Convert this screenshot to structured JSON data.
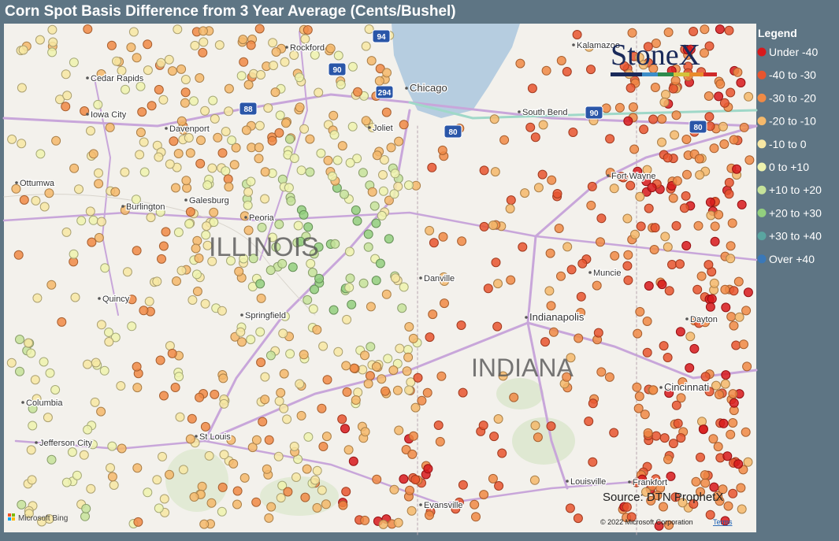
{
  "title": "Corn Spot Basis Difference from 3 Year Average (Cents/Bushel)",
  "logo": "StoneX",
  "legend": {
    "title": "Legend",
    "items": [
      {
        "label": "Under -40",
        "color": "#d7191c"
      },
      {
        "label": "-40 to -30",
        "color": "#e8552f"
      },
      {
        "label": "-30 to -20",
        "color": "#f08a45"
      },
      {
        "label": "-20 to -10",
        "color": "#f5b96b"
      },
      {
        "label": "-10 to 0",
        "color": "#f7e7a3"
      },
      {
        "label": "0 to +10",
        "color": "#eef3ae"
      },
      {
        "label": "+10 to +20",
        "color": "#c6e39a"
      },
      {
        "label": "+20 to +30",
        "color": "#92cf7e"
      },
      {
        "label": "+30 to +40",
        "color": "#5aa5a0"
      },
      {
        "label": "Over +40",
        "color": "#3a78b8"
      }
    ]
  },
  "map": {
    "state_labels": [
      "ILLINOIS",
      "INDIANA"
    ],
    "cities": [
      "Cedar Rapids",
      "Iowa City",
      "Davenport",
      "Rockford",
      "Chicago",
      "Joliet",
      "Kalamazoo",
      "South Bend",
      "Fort Wayne",
      "Ottumwa",
      "Burlington",
      "Galesburg",
      "Peoria",
      "Quincy",
      "Springfield",
      "Danville",
      "Muncie",
      "Indianapolis",
      "Dayton",
      "Columbia",
      "Jefferson City",
      "St Louis",
      "Cincinnati",
      "Louisville",
      "Frankfort",
      "Evansville"
    ],
    "highways": [
      "94",
      "90",
      "88",
      "294",
      "80",
      "90",
      "80"
    ],
    "attribution": {
      "bing": "Microsoft Bing",
      "copyright": "© 2022 Microsoft Corporation",
      "terms": "Terms"
    }
  },
  "source": "Source: DTN ProphetX"
}
